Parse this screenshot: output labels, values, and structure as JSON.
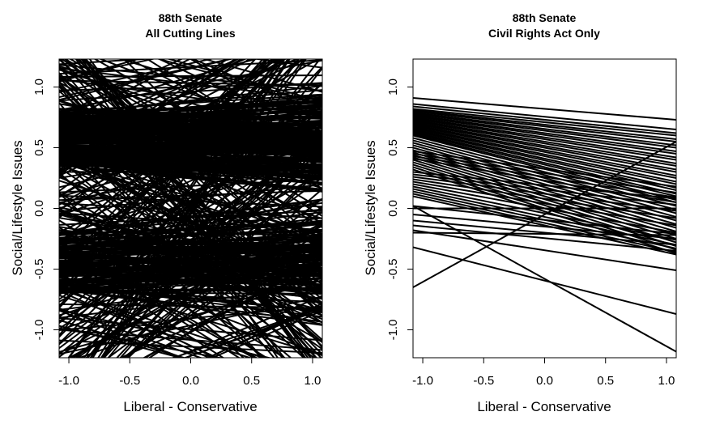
{
  "chart_data": [
    {
      "type": "line",
      "title": "88th Senate",
      "subtitle": "All Cutting Lines",
      "xlabel": "Liberal - Conservative",
      "ylabel": "Social/Lifestyle Issues",
      "xlim": [
        -1.08,
        1.08
      ],
      "ylim": [
        -1.23,
        1.23
      ],
      "xticks": [
        -1.0,
        -0.5,
        0.0,
        0.5,
        1.0
      ],
      "xtick_labels": [
        "-1.0",
        "-0.5",
        "0.0",
        "0.5",
        "1.0"
      ],
      "yticks": [
        -1.0,
        -0.5,
        0.0,
        0.5,
        1.0
      ],
      "ytick_labels": [
        "-1.0",
        "-0.5",
        "0.0",
        "0.5",
        "1.0"
      ],
      "grid": false,
      "line_color": "#000000",
      "dense_cutting_lines": true,
      "cutting_line_count_estimate": 600,
      "dense_band_y_ranges": [
        [
          0.35,
          0.8
        ],
        [
          -0.7,
          -0.2
        ]
      ],
      "note_series": "hundreds of overlapping cutting lines covering the plot area; individual endpoints not readable"
    },
    {
      "type": "line",
      "title": "88th Senate",
      "subtitle": "Civil Rights Act Only",
      "xlabel": "Liberal - Conservative",
      "ylabel": "Social/Lifestyle Issues",
      "xlim": [
        -1.08,
        1.08
      ],
      "ylim": [
        -1.23,
        1.23
      ],
      "xticks": [
        -1.0,
        -0.5,
        0.0,
        0.5,
        1.0
      ],
      "xtick_labels": [
        "-1.0",
        "-0.5",
        "0.0",
        "0.5",
        "1.0"
      ],
      "yticks": [
        -1.0,
        -0.5,
        0.0,
        0.5,
        1.0
      ],
      "ytick_labels": [
        "-1.0",
        "-0.5",
        "0.0",
        "0.5",
        "1.0"
      ],
      "grid": false,
      "line_color": "#000000",
      "cutting_lines": [
        [
          [
            -1.08,
            0.91
          ],
          [
            1.08,
            0.73
          ]
        ],
        [
          [
            -1.08,
            0.86
          ],
          [
            1.08,
            0.65
          ]
        ],
        [
          [
            -1.08,
            0.84
          ],
          [
            1.08,
            0.62
          ]
        ],
        [
          [
            -1.08,
            0.82
          ],
          [
            1.08,
            0.6
          ]
        ],
        [
          [
            -1.08,
            0.81
          ],
          [
            1.08,
            0.57
          ]
        ],
        [
          [
            -1.08,
            0.8
          ],
          [
            1.08,
            0.55
          ]
        ],
        [
          [
            -1.08,
            0.79
          ],
          [
            1.08,
            0.52
          ]
        ],
        [
          [
            -1.08,
            0.78
          ],
          [
            1.08,
            0.5
          ]
        ],
        [
          [
            -1.08,
            0.77
          ],
          [
            1.08,
            0.47
          ]
        ],
        [
          [
            -1.08,
            0.76
          ],
          [
            1.08,
            0.45
          ]
        ],
        [
          [
            -1.08,
            0.75
          ],
          [
            1.08,
            0.42
          ]
        ],
        [
          [
            -1.08,
            0.74
          ],
          [
            1.08,
            0.4
          ]
        ],
        [
          [
            -1.08,
            0.73
          ],
          [
            1.08,
            0.37
          ]
        ],
        [
          [
            -1.08,
            0.72
          ],
          [
            1.08,
            0.35
          ]
        ],
        [
          [
            -1.08,
            0.71
          ],
          [
            1.08,
            0.32
          ]
        ],
        [
          [
            -1.08,
            0.7
          ],
          [
            1.08,
            0.3
          ]
        ],
        [
          [
            -1.08,
            0.69
          ],
          [
            1.08,
            0.27
          ]
        ],
        [
          [
            -1.08,
            0.68
          ],
          [
            1.08,
            0.25
          ]
        ],
        [
          [
            -1.08,
            0.67
          ],
          [
            1.08,
            0.22
          ]
        ],
        [
          [
            -1.08,
            0.66
          ],
          [
            1.08,
            0.2
          ]
        ],
        [
          [
            -1.08,
            0.65
          ],
          [
            1.08,
            0.17
          ]
        ],
        [
          [
            -1.08,
            0.64
          ],
          [
            1.08,
            0.15
          ]
        ],
        [
          [
            -1.08,
            0.63
          ],
          [
            1.08,
            0.12
          ]
        ],
        [
          [
            -1.08,
            0.62
          ],
          [
            1.08,
            0.1
          ]
        ],
        [
          [
            -1.08,
            0.61
          ],
          [
            1.08,
            0.07
          ]
        ],
        [
          [
            -1.08,
            0.6
          ],
          [
            1.08,
            0.05
          ]
        ],
        [
          [
            -1.08,
            0.58
          ],
          [
            1.08,
            0.02
          ]
        ],
        [
          [
            -1.08,
            0.56
          ],
          [
            1.08,
            -0.01
          ]
        ],
        [
          [
            -1.08,
            0.54
          ],
          [
            1.08,
            -0.04
          ]
        ],
        [
          [
            -1.08,
            0.52
          ],
          [
            1.08,
            -0.07
          ]
        ],
        [
          [
            -1.08,
            0.5
          ],
          [
            1.08,
            -0.1
          ]
        ],
        [
          [
            -1.08,
            0.48
          ],
          [
            1.08,
            -0.13
          ]
        ],
        [
          [
            -1.08,
            0.46
          ],
          [
            1.08,
            -0.16
          ]
        ],
        [
          [
            -1.08,
            0.44
          ],
          [
            1.08,
            -0.19
          ]
        ],
        [
          [
            -1.08,
            0.42
          ],
          [
            1.08,
            -0.22
          ]
        ],
        [
          [
            -1.08,
            0.4
          ],
          [
            1.08,
            -0.25
          ]
        ],
        [
          [
            -1.08,
            0.38
          ],
          [
            1.08,
            -0.28
          ]
        ],
        [
          [
            -1.08,
            0.36
          ],
          [
            1.08,
            -0.31
          ]
        ],
        [
          [
            -1.08,
            0.34
          ],
          [
            1.08,
            -0.34
          ]
        ],
        [
          [
            -1.08,
            0.32
          ],
          [
            1.08,
            -0.37
          ]
        ],
        [
          [
            -1.08,
            0.3
          ],
          [
            1.08,
            0.08
          ]
        ],
        [
          [
            -1.08,
            0.28
          ],
          [
            1.08,
            0.03
          ]
        ],
        [
          [
            -1.08,
            0.26
          ],
          [
            1.08,
            -0.02
          ]
        ],
        [
          [
            -1.08,
            0.24
          ],
          [
            1.08,
            -0.08
          ]
        ],
        [
          [
            -1.08,
            0.22
          ],
          [
            1.08,
            -0.14
          ]
        ],
        [
          [
            -1.08,
            0.2
          ],
          [
            1.08,
            -0.2
          ]
        ],
        [
          [
            -1.08,
            0.18
          ],
          [
            1.08,
            -0.26
          ]
        ],
        [
          [
            -1.08,
            0.16
          ],
          [
            1.08,
            -0.3
          ]
        ],
        [
          [
            -1.08,
            0.14
          ],
          [
            1.08,
            -0.33
          ]
        ],
        [
          [
            -1.08,
            0.12
          ],
          [
            1.08,
            -0.36
          ]
        ],
        [
          [
            -1.08,
            0.1
          ],
          [
            1.08,
            -0.38
          ]
        ],
        [
          [
            -1.08,
            0.47
          ],
          [
            1.08,
            0.18
          ]
        ],
        [
          [
            -1.08,
            0.45
          ],
          [
            1.08,
            0.13
          ]
        ],
        [
          [
            -1.08,
            0.43
          ],
          [
            1.08,
            0.09
          ]
        ],
        [
          [
            -1.08,
            0.41
          ],
          [
            1.08,
            0.05
          ]
        ],
        [
          [
            -1.08,
            0.02
          ],
          [
            1.08,
            -0.21
          ]
        ],
        [
          [
            -1.08,
            -0.05
          ],
          [
            1.08,
            -0.25
          ]
        ],
        [
          [
            -1.08,
            -0.1
          ],
          [
            1.08,
            -0.3
          ]
        ],
        [
          [
            -1.08,
            -0.14
          ],
          [
            1.08,
            -0.35
          ]
        ],
        [
          [
            -1.08,
            -0.2
          ],
          [
            1.08,
            -0.22
          ]
        ],
        [
          [
            -1.08,
            -0.18
          ],
          [
            1.08,
            -0.51
          ]
        ],
        [
          [
            -1.08,
            0.02
          ],
          [
            1.08,
            -1.18
          ]
        ],
        [
          [
            -1.08,
            -0.32
          ],
          [
            1.08,
            -0.87
          ]
        ],
        [
          [
            -1.08,
            -0.65
          ],
          [
            1.08,
            0.55
          ]
        ],
        [
          [
            -1.08,
            0.0
          ],
          [
            1.08,
            0.0
          ]
        ]
      ]
    }
  ]
}
